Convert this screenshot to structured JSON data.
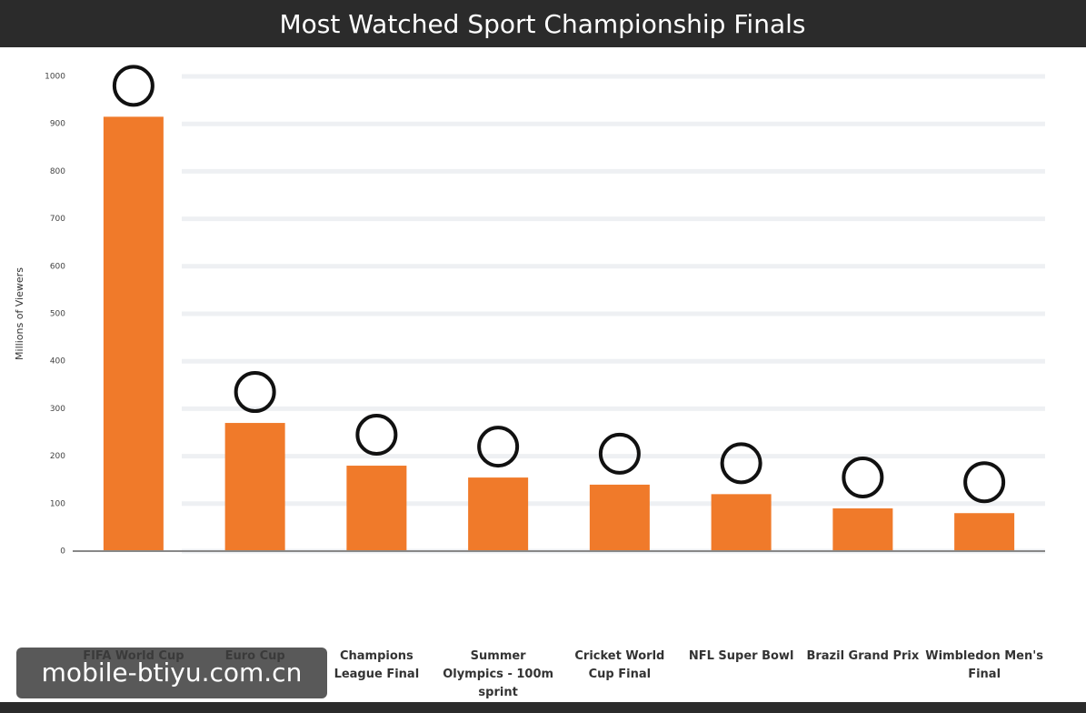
{
  "chart_data": {
    "type": "bar",
    "title": "Most Watched Sport Championship Finals",
    "y_label": "Millions of Viewers",
    "categories": [
      "FIFA World Cup",
      "Euro Cup",
      "Champions League Final",
      "Summer Olympics - 100m sprint",
      "Cricket World Cup Final",
      "NFL Super Bowl",
      "Brazil Grand Prix",
      "Wimbledon Men's Final"
    ],
    "values": [
      915,
      270,
      180,
      155,
      140,
      120,
      90,
      80
    ],
    "color": "#f07a2a",
    "ylim": [
      0,
      1000
    ],
    "yticks": [
      0,
      100,
      200,
      300,
      400,
      500,
      600,
      700,
      800,
      900,
      1000
    ],
    "grid": true
  },
  "watermark": "mobile-btiyu.com.cn"
}
